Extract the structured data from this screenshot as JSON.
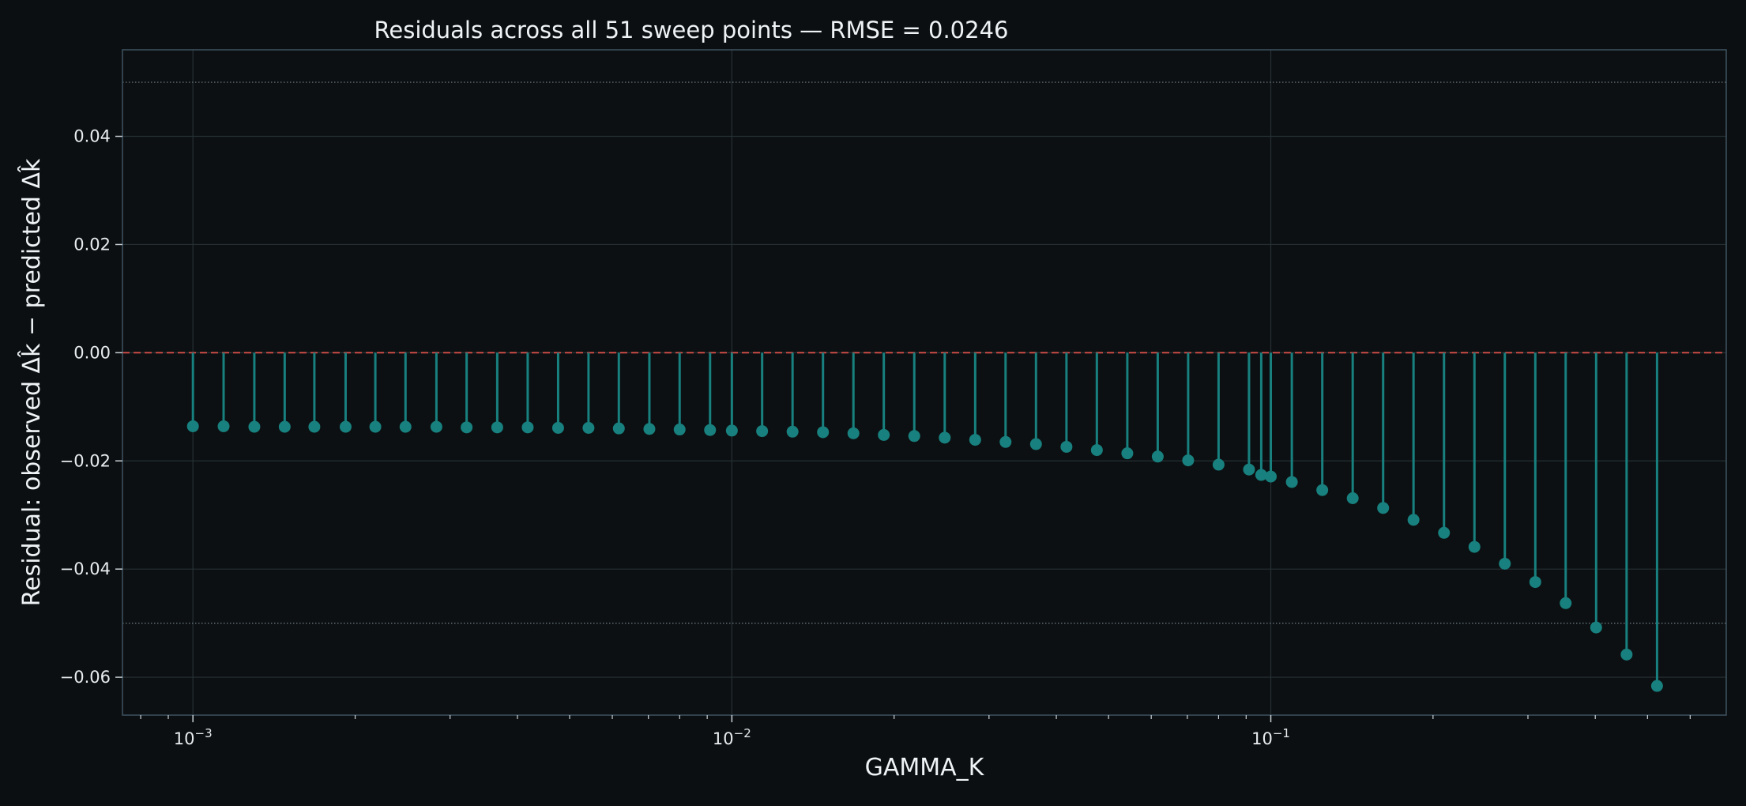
{
  "chart_data": {
    "type": "stem",
    "title": "Residuals across all 51 sweep points — RMSE = 0.0246",
    "xlabel": "GAMMA_K",
    "ylabel": "Residual: observed Δk̂ − predicted Δk̂",
    "x_scale": "log",
    "xlim": [
      0.00074,
      0.7
    ],
    "ylim": [
      -0.067,
      0.056
    ],
    "y_ticks": [
      {
        "value": 0.04,
        "label": "0.04"
      },
      {
        "value": 0.02,
        "label": "0.02"
      },
      {
        "value": 0.0,
        "label": "0.00"
      },
      {
        "value": -0.02,
        "label": "−0.02"
      },
      {
        "value": -0.04,
        "label": "−0.04"
      },
      {
        "value": -0.06,
        "label": "−0.06"
      }
    ],
    "x_ticks": [
      {
        "value": 0.001,
        "base": "10",
        "exp": "−3"
      },
      {
        "value": 0.01,
        "base": "10",
        "exp": "−2"
      },
      {
        "value": 0.1,
        "base": "10",
        "exp": "−1"
      }
    ],
    "reference_lines": [
      {
        "y": 0.0,
        "style": "dashed",
        "color": "#e0524d"
      },
      {
        "y": 0.05,
        "style": "dotted",
        "color": "#6f7e86"
      },
      {
        "y": -0.05,
        "style": "dotted",
        "color": "#6f7e86"
      }
    ],
    "grid": true,
    "stem_color": "#18807e",
    "x": [
      0.001,
      0.00114,
      0.0013,
      0.00148,
      0.00168,
      0.00192,
      0.00218,
      0.00248,
      0.00283,
      0.00322,
      0.00367,
      0.00418,
      0.00476,
      0.00542,
      0.00617,
      0.00703,
      0.008,
      0.00911,
      0.01,
      0.01138,
      0.01296,
      0.01476,
      0.01681,
      0.01914,
      0.0218,
      0.02483,
      0.02828,
      0.0322,
      0.03667,
      0.04177,
      0.04756,
      0.05417,
      0.06169,
      0.07025,
      0.08,
      0.09111,
      0.096,
      0.1,
      0.1094,
      0.1246,
      0.1419,
      0.1616,
      0.184,
      0.2096,
      0.2387,
      0.2718,
      0.3096,
      0.3525,
      0.4015,
      0.4573,
      0.5208
    ],
    "values": [
      -0.0136,
      -0.0136,
      -0.0137,
      -0.0137,
      -0.0137,
      -0.0137,
      -0.0137,
      -0.0137,
      -0.0137,
      -0.0138,
      -0.0138,
      -0.0138,
      -0.0139,
      -0.0139,
      -0.014,
      -0.0141,
      -0.0142,
      -0.0143,
      -0.0144,
      -0.0145,
      -0.0146,
      -0.0147,
      -0.0149,
      -0.0152,
      -0.0154,
      -0.0157,
      -0.0161,
      -0.0165,
      -0.0169,
      -0.0174,
      -0.018,
      -0.0186,
      -0.0192,
      -0.0199,
      -0.0207,
      -0.0216,
      -0.0226,
      -0.0229,
      -0.0239,
      -0.0254,
      -0.0269,
      -0.0287,
      -0.0309,
      -0.0333,
      -0.0359,
      -0.039,
      -0.0424,
      -0.0463,
      -0.0508,
      -0.0558,
      -0.0616
    ]
  }
}
